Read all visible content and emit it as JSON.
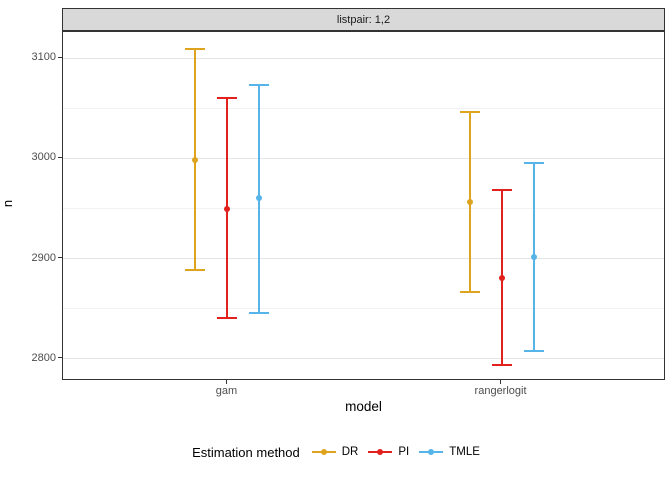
{
  "strip": {
    "label": "listpair: 1,2"
  },
  "y_axis": {
    "title": "n",
    "ticks": [
      3100,
      3000,
      2900,
      2800
    ],
    "minor_ticks": [
      3050,
      2950,
      2850
    ]
  },
  "x_axis": {
    "title": "model",
    "categories": [
      "gam",
      "rangerlogit"
    ]
  },
  "legend": {
    "title": "Estimation method",
    "items": [
      {
        "label": "DR",
        "color": "#DFA41F"
      },
      {
        "label": "PI",
        "color": "#E2201C"
      },
      {
        "label": "TMLE",
        "color": "#56B4E9"
      }
    ]
  },
  "chart_data": {
    "type": "scatter",
    "subtype": "pointrange",
    "title": "listpair: 1,2",
    "xlabel": "model",
    "ylabel": "n",
    "ylim": [
      2778,
      3126
    ],
    "grid": "on",
    "legend_position": "bottom",
    "categories": [
      "gam",
      "rangerlogit"
    ],
    "series": [
      {
        "name": "DR",
        "color": "#DFA41F",
        "points": [
          {
            "x": "gam",
            "y": 2998,
            "ymin": 2889,
            "ymax": 3109
          },
          {
            "x": "rangerlogit",
            "y": 2956,
            "ymin": 2867,
            "ymax": 3046
          }
        ]
      },
      {
        "name": "PI",
        "color": "#E2201C",
        "points": [
          {
            "x": "gam",
            "y": 2950,
            "ymin": 2841,
            "ymax": 3060
          },
          {
            "x": "rangerlogit",
            "y": 2881,
            "ymin": 2794,
            "ymax": 2968
          }
        ]
      },
      {
        "name": "TMLE",
        "color": "#56B4E9",
        "points": [
          {
            "x": "gam",
            "y": 2960,
            "ymin": 2846,
            "ymax": 3073
          },
          {
            "x": "rangerlogit",
            "y": 2902,
            "ymin": 2808,
            "ymax": 2995
          }
        ]
      }
    ]
  }
}
